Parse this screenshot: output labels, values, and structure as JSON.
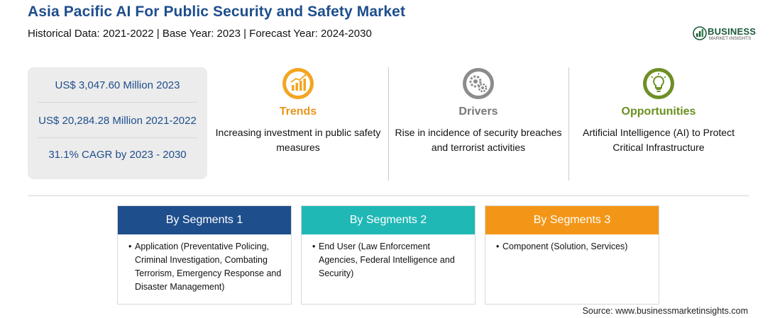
{
  "header": {
    "title": "Asia Pacific AI For Public Security and Safety Market",
    "subtitle": "Historical Data: 2021-2022 | Base Year: 2023 | Forecast Year: 2024-2030"
  },
  "logo": {
    "name": "BUSINESS",
    "tagline": "MARKET INSIGHTS",
    "color": "#1d5a38"
  },
  "stats": [
    "US$ 3,047.60 Million 2023",
    "US$ 20,284.28 Million 2021-2022",
    "31.1% CAGR by 2023 - 2030"
  ],
  "cards": {
    "trends": {
      "title": "Trends",
      "text": "Increasing investment in public safety measures",
      "icon": "chart-growth-icon",
      "color": "#e8961b"
    },
    "drivers": {
      "title": "Drivers",
      "text": "Rise in incidence of security breaches and terrorist activities",
      "icon": "gears-icon",
      "color": "#777777"
    },
    "opportunities": {
      "title": "Opportunities",
      "text": "Artificial Intelligence (AI) to Protect Critical Infrastructure",
      "icon": "lightbulb-icon",
      "color": "#6a8f1f"
    }
  },
  "segments": [
    {
      "title": "By Segments 1",
      "item": "Application (Preventative Policing, Criminal Investigation, Combating Terrorism, Emergency Response and Disaster Management)",
      "color": "#1e4e8c"
    },
    {
      "title": "By Segments 2",
      "item": "End User (Law Enforcement Agencies, Federal Intelligence and Security)",
      "color": "#1fb8b5"
    },
    {
      "title": "By Segments 3",
      "item": "Component (Solution, Services)",
      "color": "#f39617"
    }
  ],
  "bullet": "•",
  "source": "Source: www.businessmarketinsights.com"
}
